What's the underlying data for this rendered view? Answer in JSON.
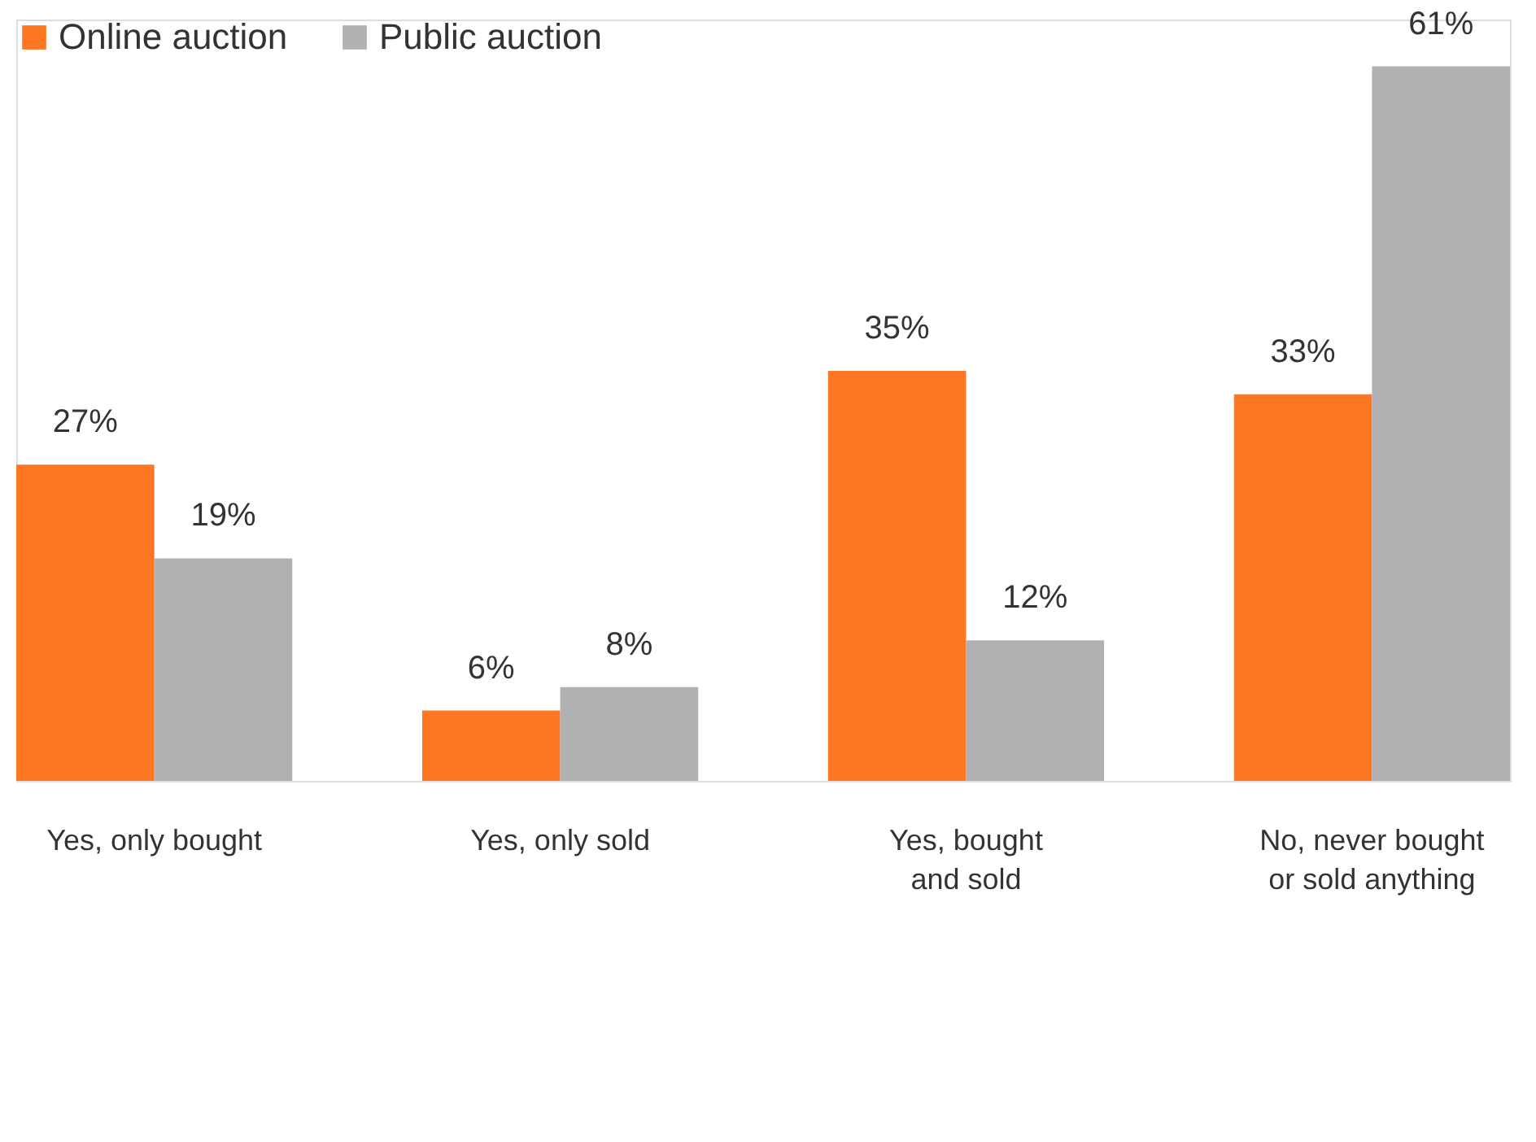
{
  "chart_data": {
    "type": "bar",
    "categories": [
      "Yes, only bought",
      "Yes, only sold",
      "Yes, bought\nand sold",
      "No, never bought\nor sold anything"
    ],
    "series": [
      {
        "name": "Online auction",
        "color": "#ff7722",
        "values": [
          27,
          6,
          35,
          33
        ],
        "value_labels": [
          "27%",
          "6%",
          "35%",
          "33%"
        ]
      },
      {
        "name": "Public auction",
        "color": "#b1b1b4",
        "values": [
          19,
          8,
          12,
          61
        ],
        "value_labels": [
          "19%",
          "8%",
          "12%",
          "61%"
        ]
      }
    ],
    "legend": "top left",
    "grid": false
  }
}
